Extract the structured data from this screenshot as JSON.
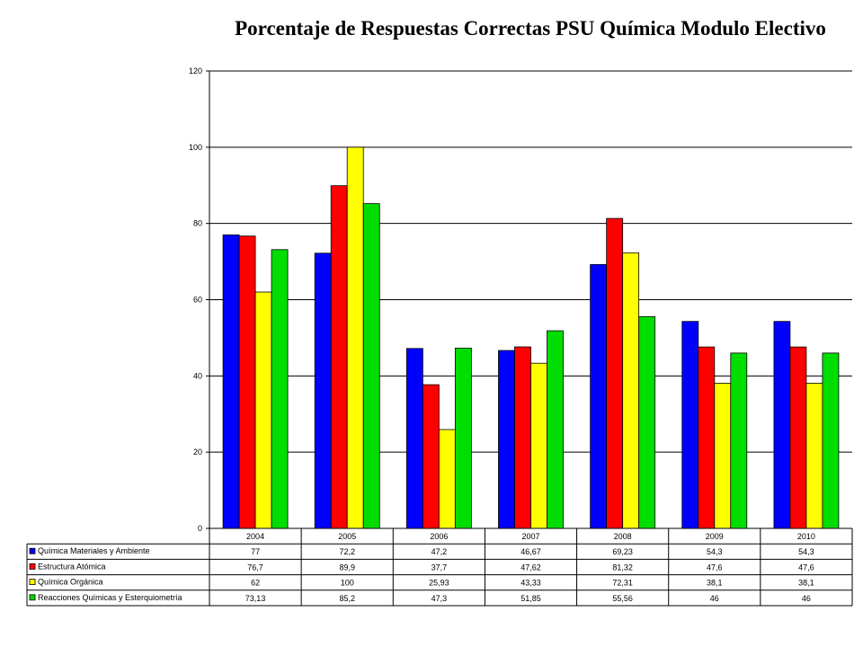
{
  "chart_data": {
    "type": "bar",
    "title": "Porcentaje de Respuestas Correctas PSU Química Modulo Electivo",
    "categories": [
      "2004",
      "2005",
      "2006",
      "2007",
      "2008",
      "2009",
      "2010"
    ],
    "ylim": [
      0,
      120
    ],
    "yticks": [
      0,
      20,
      40,
      60,
      80,
      100,
      120
    ],
    "grid": true,
    "legend_placement": "data-table-left",
    "series": [
      {
        "name": "Química Materiales y Ambiente",
        "color": "#0000FF",
        "values": [
          77,
          72.2,
          47.2,
          46.67,
          69.23,
          54.3,
          54.3
        ],
        "labels": [
          "77",
          "72,2",
          "47,2",
          "46,67",
          "69,23",
          "54,3",
          "54,3"
        ]
      },
      {
        "name": "Estructura Atómica",
        "color": "#FF0000",
        "values": [
          76.7,
          89.9,
          37.7,
          47.62,
          81.32,
          47.6,
          47.6
        ],
        "labels": [
          "76,7",
          "89,9",
          "37,7",
          "47,62",
          "81,32",
          "47,6",
          "47,6"
        ]
      },
      {
        "name": "Química Orgánica",
        "color": "#FFFF00",
        "values": [
          62,
          100,
          25.93,
          43.33,
          72.31,
          38.1,
          38.1
        ],
        "labels": [
          "62",
          "100",
          "25,93",
          "43,33",
          "72,31",
          "38,1",
          "38,1"
        ]
      },
      {
        "name": "Reacciones Químicas y Esterquiometría",
        "color": "#00DD00",
        "values": [
          73.13,
          85.2,
          47.3,
          51.85,
          55.56,
          46,
          46
        ],
        "labels": [
          "73,13",
          "85,2",
          "47,3",
          "51,85",
          "55,56",
          "46",
          "46"
        ]
      }
    ]
  }
}
